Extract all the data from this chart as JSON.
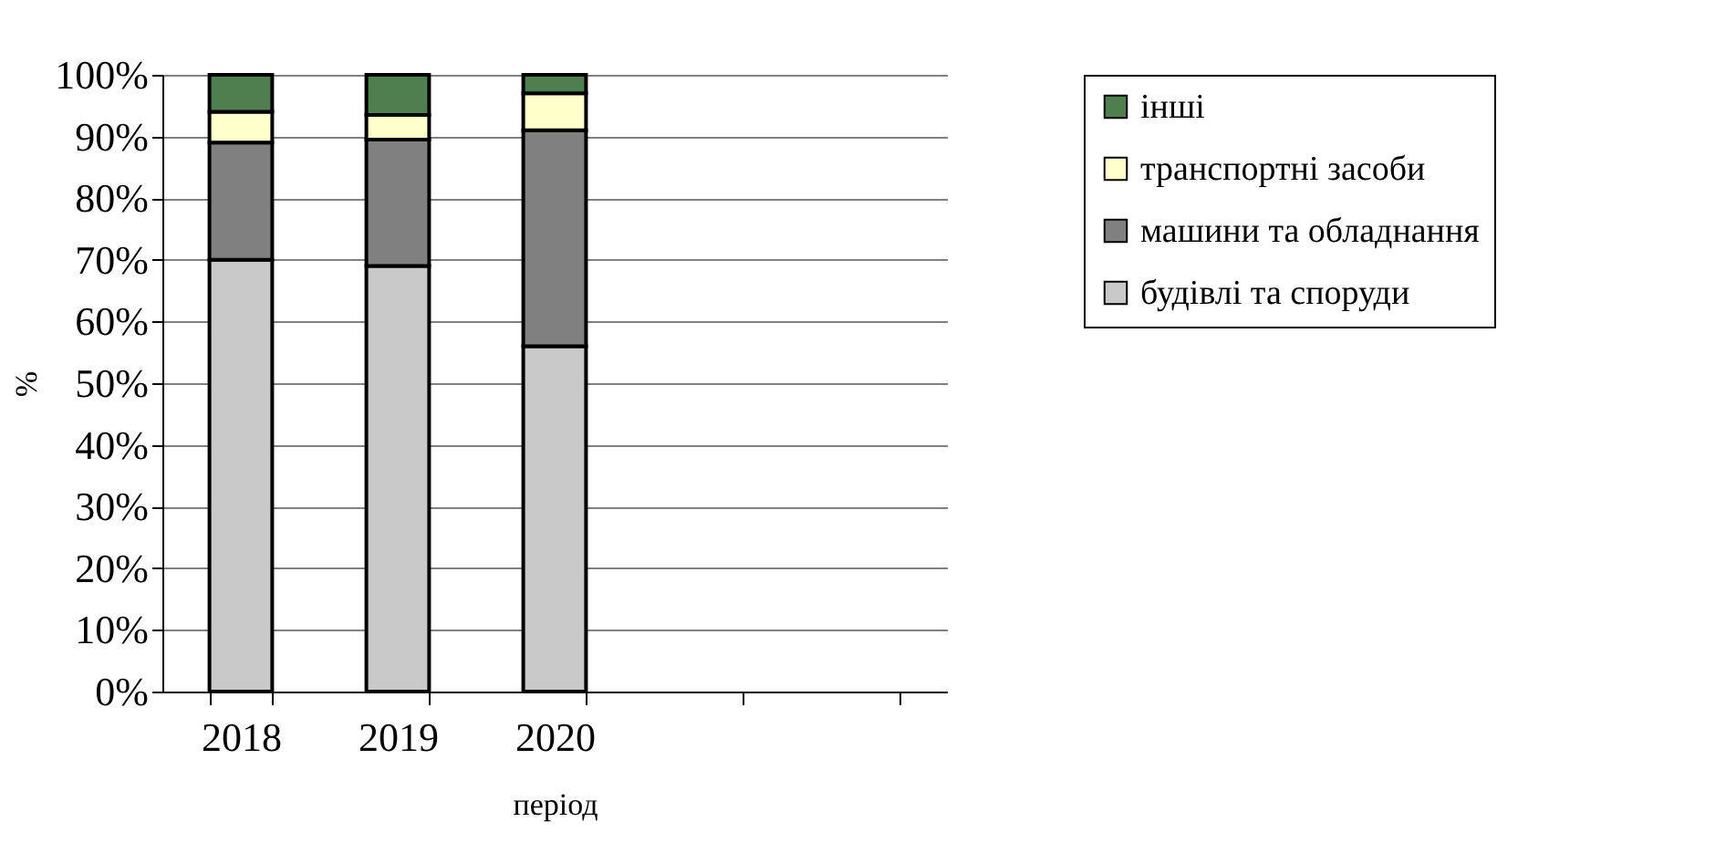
{
  "chart_data": {
    "type": "bar",
    "stacked": true,
    "xlabel": "період",
    "ylabel": "%",
    "categories": [
      "2018",
      "2019",
      "2020",
      null,
      null
    ],
    "series": [
      {
        "name": "будівлі та споруди",
        "color": "#c8c8c8",
        "values": [
          70,
          69,
          56,
          null,
          null
        ]
      },
      {
        "name": "машини та обладнання",
        "color": "#808080",
        "values": [
          19,
          20.5,
          35,
          null,
          null
        ]
      },
      {
        "name": "транспортні засоби",
        "color": "#ffffcc",
        "values": [
          5,
          4,
          6,
          null,
          null
        ]
      },
      {
        "name": "інші",
        "color": "#4f7f4f",
        "values": [
          6,
          6.5,
          3,
          null,
          null
        ]
      }
    ],
    "ylim": [
      0,
      100
    ],
    "yticks": [
      {
        "value": 0,
        "label": "0%"
      },
      {
        "value": 10,
        "label": "10%"
      },
      {
        "value": 20,
        "label": "20%"
      },
      {
        "value": 30,
        "label": "30%"
      },
      {
        "value": 40,
        "label": "40%"
      },
      {
        "value": 50,
        "label": "50%"
      },
      {
        "value": 60,
        "label": "60%"
      },
      {
        "value": 70,
        "label": "70%"
      },
      {
        "value": 80,
        "label": "80%"
      },
      {
        "value": 90,
        "label": "90%"
      },
      {
        "value": 100,
        "label": "100%"
      }
    ],
    "grid": "y",
    "legend": "right"
  }
}
